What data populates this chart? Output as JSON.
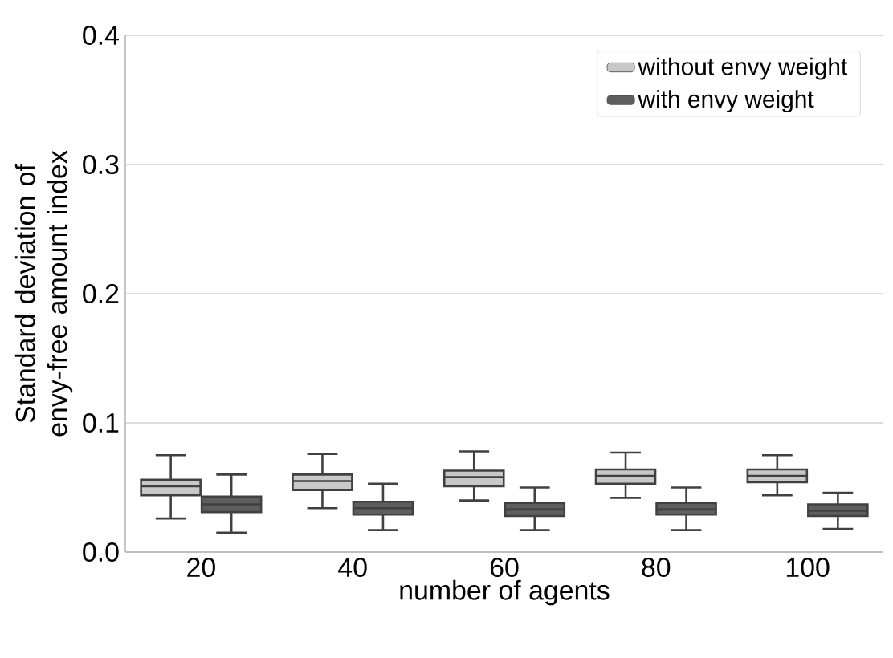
{
  "chart_data": {
    "type": "box",
    "xlabel": "number of agents",
    "ylabel": "Standard deviation of envy-free amount index",
    "categories": [
      "20",
      "40",
      "60",
      "80",
      "100"
    ],
    "ylim": [
      0,
      0.4
    ],
    "yticks": [
      {
        "value": 0,
        "label": "0.0"
      },
      0.1,
      0.2,
      0.3,
      0.4
    ],
    "grid": "y",
    "legend": "top right",
    "series": [
      {
        "name": "without envy weight",
        "color": "#c8c8c8",
        "boxes": [
          {
            "low": 0.026,
            "q1": 0.044,
            "median": 0.051,
            "q3": 0.056,
            "high": 0.075
          },
          {
            "low": 0.034,
            "q1": 0.048,
            "median": 0.055,
            "q3": 0.06,
            "high": 0.076
          },
          {
            "low": 0.04,
            "q1": 0.051,
            "median": 0.058,
            "q3": 0.063,
            "high": 0.078
          },
          {
            "low": 0.042,
            "q1": 0.053,
            "median": 0.059,
            "q3": 0.064,
            "high": 0.077
          },
          {
            "low": 0.044,
            "q1": 0.054,
            "median": 0.059,
            "q3": 0.064,
            "high": 0.075
          }
        ]
      },
      {
        "name": "with envy weight",
        "color": "#5e5e5e",
        "boxes": [
          {
            "low": 0.015,
            "q1": 0.031,
            "median": 0.037,
            "q3": 0.043,
            "high": 0.06
          },
          {
            "low": 0.017,
            "q1": 0.029,
            "median": 0.034,
            "q3": 0.039,
            "high": 0.053
          },
          {
            "low": 0.017,
            "q1": 0.028,
            "median": 0.033,
            "q3": 0.038,
            "high": 0.05
          },
          {
            "low": 0.017,
            "q1": 0.029,
            "median": 0.033,
            "q3": 0.038,
            "high": 0.05
          },
          {
            "low": 0.018,
            "q1": 0.028,
            "median": 0.032,
            "q3": 0.037,
            "high": 0.046
          }
        ]
      }
    ]
  }
}
